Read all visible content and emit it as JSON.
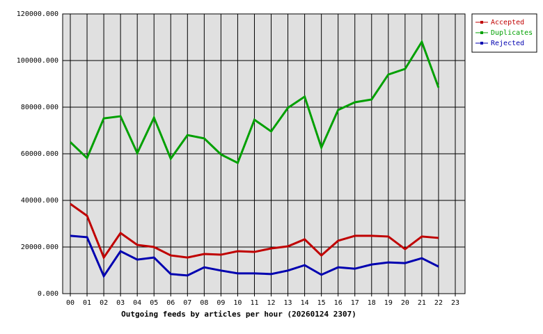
{
  "chart_data": {
    "type": "line",
    "xlabel": "Outgoing feeds by articles per hour (20260124 2307)",
    "categories": [
      "00",
      "01",
      "02",
      "03",
      "04",
      "05",
      "06",
      "07",
      "08",
      "09",
      "10",
      "11",
      "12",
      "13",
      "14",
      "15",
      "16",
      "17",
      "18",
      "19",
      "20",
      "21",
      "22",
      "23"
    ],
    "series": [
      {
        "name": "Accepted",
        "color": "#c00000",
        "values": [
          38500,
          33400,
          15500,
          26000,
          20900,
          20000,
          16400,
          15500,
          17000,
          16700,
          18200,
          17900,
          19400,
          20300,
          23300,
          16400,
          22700,
          24800,
          24800,
          24500,
          19100,
          24500,
          23900,
          null
        ]
      },
      {
        "name": "Duplicates",
        "color": "#00a000",
        "values": [
          65000,
          58200,
          75200,
          76100,
          60300,
          75500,
          57900,
          68000,
          66600,
          59700,
          56100,
          74600,
          69600,
          79700,
          84500,
          62700,
          78800,
          82100,
          83300,
          94000,
          96400,
          108000,
          88400,
          null
        ]
      },
      {
        "name": "Rejected",
        "color": "#0000b0",
        "values": [
          24800,
          24200,
          7500,
          18200,
          14600,
          15500,
          8400,
          7800,
          11300,
          9900,
          8700,
          8700,
          8400,
          9900,
          12200,
          8100,
          11300,
          10700,
          12500,
          13400,
          13100,
          15200,
          11600,
          null
        ]
      }
    ],
    "ylim": [
      0,
      120000
    ],
    "yticks": [
      {
        "value": 0,
        "label": "0.000"
      },
      {
        "value": 20000,
        "label": "20000.000"
      },
      {
        "value": 40000,
        "label": "40000.000"
      },
      {
        "value": 60000,
        "label": "60000.000"
      },
      {
        "value": 80000,
        "label": "80000.000"
      },
      {
        "value": 100000,
        "label": "100000.000"
      },
      {
        "value": 120000,
        "label": "120000.000"
      }
    ],
    "grid": true
  }
}
